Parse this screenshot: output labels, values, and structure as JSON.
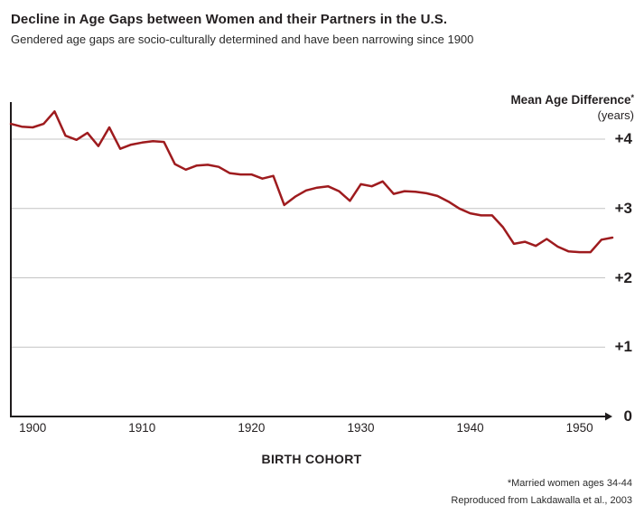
{
  "header": {
    "title": "Decline in Age Gaps between Women and their Partners in the U.S.",
    "subtitle": "Gendered age gaps are socio-culturally determined and have been narrowing since 1900"
  },
  "y_axis": {
    "title": "Mean Age Difference",
    "asterisk": "*",
    "units": "(years)"
  },
  "x_axis": {
    "title": "BIRTH COHORT"
  },
  "footnotes": [
    "*Married women ages 34-44",
    "Reproduced from Lakdawalla et al., 2003"
  ],
  "colors": {
    "line": "#9e1b1e",
    "axis": "#1f1b1c",
    "gridline": "#c4c4c4",
    "text": "#231f20",
    "background": "#ffffff"
  },
  "chart_data": {
    "type": "line",
    "title": "Decline in Age Gaps between Women and their Partners in the U.S.",
    "xlabel": "BIRTH COHORT",
    "ylabel": "Mean Age Difference (years)",
    "x": [
      1898,
      1899,
      1900,
      1901,
      1902,
      1903,
      1904,
      1905,
      1906,
      1907,
      1908,
      1909,
      1910,
      1911,
      1912,
      1913,
      1914,
      1915,
      1916,
      1917,
      1918,
      1919,
      1920,
      1921,
      1922,
      1923,
      1924,
      1925,
      1926,
      1927,
      1928,
      1929,
      1930,
      1931,
      1932,
      1933,
      1934,
      1935,
      1936,
      1937,
      1938,
      1939,
      1940,
      1941,
      1942,
      1943,
      1944,
      1945,
      1946,
      1947,
      1948,
      1949,
      1950,
      1951,
      1952,
      1953
    ],
    "series": [
      {
        "name": "Mean age difference between women and their partners (years)",
        "values": [
          4.22,
          4.18,
          4.17,
          4.22,
          4.4,
          4.05,
          3.99,
          4.09,
          3.9,
          4.17,
          3.86,
          3.92,
          3.95,
          3.97,
          3.96,
          3.64,
          3.56,
          3.62,
          3.63,
          3.6,
          3.51,
          3.49,
          3.49,
          3.43,
          3.47,
          3.05,
          3.17,
          3.26,
          3.3,
          3.32,
          3.25,
          3.11,
          3.35,
          3.32,
          3.39,
          3.21,
          3.25,
          3.24,
          3.22,
          3.18,
          3.1,
          3.0,
          2.93,
          2.9,
          2.9,
          2.73,
          2.49,
          2.52,
          2.46,
          2.56,
          2.45,
          2.38,
          2.37,
          2.37,
          2.55,
          2.58
        ]
      }
    ],
    "x_ticks": [
      1900,
      1910,
      1920,
      1930,
      1940,
      1950
    ],
    "y_ticks": [
      {
        "label": "+4",
        "value": 4
      },
      {
        "label": "+3",
        "value": 3
      },
      {
        "label": "+2",
        "value": 2
      },
      {
        "label": "+1",
        "value": 1
      },
      {
        "label": "0",
        "value": 0
      }
    ],
    "xlim": [
      1898,
      1953
    ],
    "ylim": [
      0,
      4.53
    ],
    "grid": "horizontal",
    "legend": "none"
  }
}
